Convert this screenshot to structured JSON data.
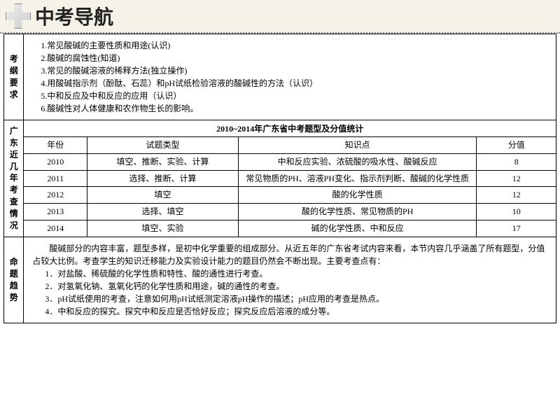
{
  "header": {
    "title": "中考导航"
  },
  "sections": {
    "requirements_label": "考纲要求",
    "stats_label": "广东近几年考查情况",
    "trend_label": "命题趋势"
  },
  "requirements": [
    "1.常见酸碱的主要性质和用途(认识)",
    "2.酸碱的腐蚀性(知道)",
    "3.常见的酸碱溶液的稀释方法(独立操作)",
    "4.用酸碱指示剂（酚酞、石蕊）和pH试纸检验溶液的酸碱性的方法（认识）",
    "5.中和反应及中和反应的应用（认识）",
    "6.酸碱性对人体健康和农作物生长的影响。"
  ],
  "stats": {
    "title": "2010~2014年广东省中考题型及分值统计",
    "columns": [
      "年份",
      "试题类型",
      "知识点",
      "分值"
    ],
    "col_widths": [
      "80px",
      "190px",
      "300px",
      "100px"
    ],
    "rows": [
      [
        "2010",
        "填空、推断、实验、计算",
        "中和反应实验、浓硫酸的吸水性、酸碱反应",
        "8"
      ],
      [
        "2011",
        "选择、推断、计算",
        "常见物质的PH、溶液PH变化、指示剂判断、酸碱的化学性质",
        "12"
      ],
      [
        "2012",
        "填空",
        "酸的化学性质",
        "12"
      ],
      [
        "2013",
        "选择、填空",
        "酸的化学性质、常见物质的PH",
        "10"
      ],
      [
        "2014",
        "填空、实验",
        "碱的化学性质、中和反应",
        "17"
      ]
    ]
  },
  "trend": {
    "intro": "酸碱部分的内容丰富，题型多样，是初中化学重要的组成部分。从近五年的广东省考试内容来看，本节内容几乎涵盖了所有题型，分值占较大比例。考查学生的知识迁移能力及实验设计能力的题目仍然会不断出现。主要考查点有：",
    "points": [
      "1．对盐酸、稀硫酸的化学性质和特性、酸的通性进行考查。",
      "2．对氢氧化钠、氢氧化钙的化学性质和用途，碱的通性的考查。",
      "3．pH试纸使用的考查，注意如何用pH试纸测定溶液pH操作的描述；pH应用的考查是热点。",
      "4．中和反应的探究。探究中和反应是否恰好反应；探究反应后溶液的成分等。"
    ]
  }
}
